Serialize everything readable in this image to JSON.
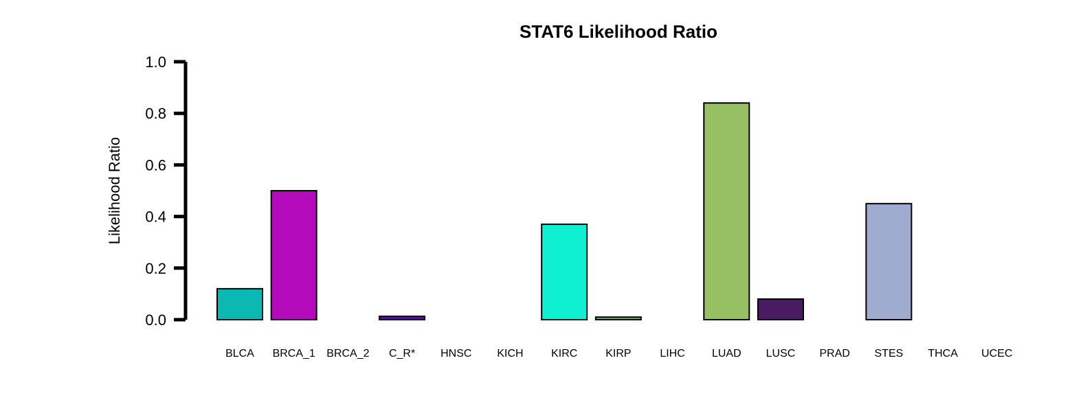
{
  "chart_data": {
    "type": "bar",
    "title": "STAT6 Likelihood Ratio",
    "xlabel": "",
    "ylabel": "Likelihood Ratio",
    "ylim": [
      0,
      1
    ],
    "yticks": [
      "0.0",
      "0.2",
      "0.4",
      "0.6",
      "0.8",
      "1.0"
    ],
    "categories": [
      "BLCA",
      "BRCA_1",
      "BRCA_2",
      "C_R*",
      "HNSC",
      "KICH",
      "KIRC",
      "KIRP",
      "LIHC",
      "LUAD",
      "LUSC",
      "PRAD",
      "STES",
      "THCA",
      "UCEC"
    ],
    "values": [
      0.12,
      0.5,
      0.0,
      0.013,
      0.0,
      0.0,
      0.37,
      0.01,
      0.0,
      0.84,
      0.08,
      0.0,
      0.45,
      0.0,
      0.0
    ],
    "colors": [
      "#0cb9b2",
      "#b30bbb",
      "#000000",
      "#5a0f99",
      "#000000",
      "#000000",
      "#0fefd2",
      "#6aad6a",
      "#000000",
      "#97bf63",
      "#4a1b63",
      "#000000",
      "#9facd0",
      "#000000",
      "#000000"
    ],
    "grid": false,
    "legend": "none"
  }
}
